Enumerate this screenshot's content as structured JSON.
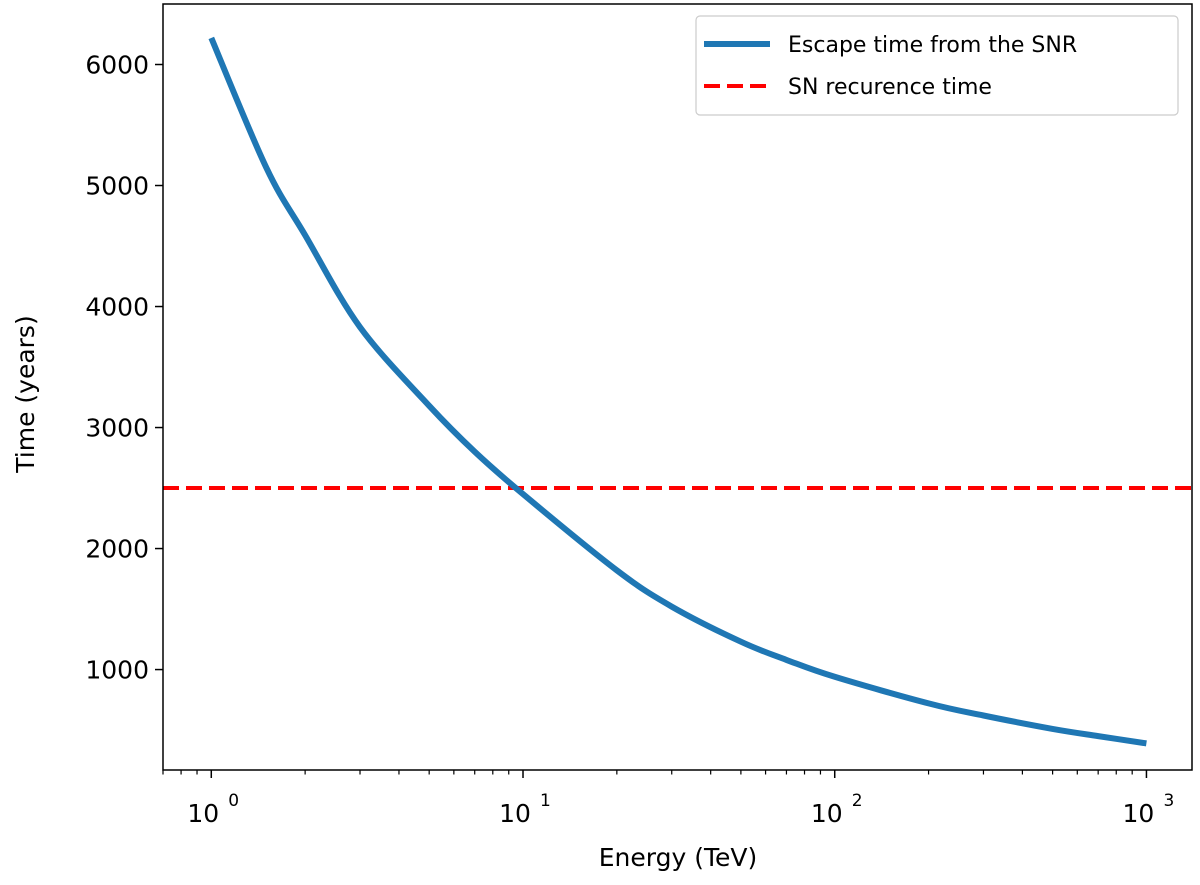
{
  "chart_data": {
    "type": "line",
    "xscale": "log",
    "xlabel": "Energy (TeV)",
    "ylabel": "Time (years)",
    "xlim": [
      0.7,
      1400
    ],
    "ylim": [
      170,
      6500
    ],
    "x_ticks": [
      {
        "base": "10",
        "exp": "0",
        "value": 1
      },
      {
        "base": "10",
        "exp": "1",
        "value": 10
      },
      {
        "base": "10",
        "exp": "2",
        "value": 100
      },
      {
        "base": "10",
        "exp": "3",
        "value": 1000
      }
    ],
    "y_ticks": [
      {
        "label": "1000",
        "value": 1000
      },
      {
        "label": "2000",
        "value": 2000
      },
      {
        "label": "3000",
        "value": 3000
      },
      {
        "label": "4000",
        "value": 4000
      },
      {
        "label": "5000",
        "value": 5000
      },
      {
        "label": "6000",
        "value": 6000
      }
    ],
    "legend_position": "top-right",
    "series": [
      {
        "name": "Escape time from the SNR",
        "color": "#1f77b4",
        "style": "solid",
        "x": [
          1,
          1.5,
          2,
          3,
          5,
          7,
          10,
          20,
          30,
          50,
          70,
          100,
          200,
          300,
          500,
          700,
          1000
        ],
        "y": [
          6220,
          5150,
          4590,
          3830,
          3180,
          2800,
          2450,
          1820,
          1520,
          1230,
          1080,
          940,
          720,
          620,
          510,
          450,
          390
        ]
      },
      {
        "name": "SN recurence time",
        "color": "#ff0000",
        "style": "dashed",
        "y_constant": 2500
      }
    ]
  }
}
